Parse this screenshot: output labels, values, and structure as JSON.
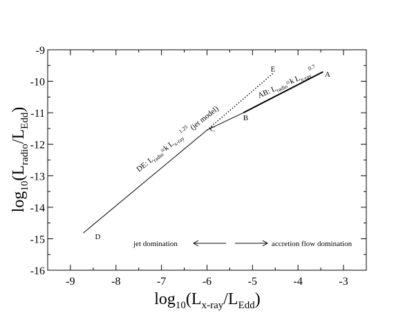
{
  "chart_data": {
    "type": "line",
    "xlim": [
      -9.5,
      -2.5
    ],
    "ylim": [
      -16,
      -9
    ],
    "x_ticks": [
      -9,
      -8,
      -7,
      -6,
      -5,
      -4,
      -3
    ],
    "y_ticks": [
      -16,
      -15,
      -14,
      -13,
      -12,
      -11,
      -10,
      -9
    ],
    "x_tick_labels": [
      "-9",
      "-8",
      "-7",
      "-6",
      "-5",
      "-4",
      "-3"
    ],
    "y_tick_labels": [
      "-16",
      "-15",
      "-14",
      "-13",
      "-12",
      "-11",
      "-10",
      "-9"
    ],
    "grid": false,
    "xlabel": {
      "base": "log",
      "sub1": "10",
      "open": "(L",
      "sub2": "x-ray",
      "mid": "/L",
      "sub3": "Edd",
      "close": ")"
    },
    "ylabel": {
      "base": "log",
      "sub1": "10",
      "open": "(L",
      "sub2": "radio",
      "mid": "/L",
      "sub3": "Edd",
      "close": ")"
    },
    "series": [
      {
        "style": "solid-thin",
        "points": [
          [
            -8.72,
            -14.82
          ],
          [
            -6.0,
            -11.55
          ]
        ]
      },
      {
        "style": "dotted",
        "points": [
          [
            -6.0,
            -11.55
          ],
          [
            -4.55,
            -9.75
          ]
        ]
      },
      {
        "style": "solid-thin",
        "points": [
          [
            -6.0,
            -11.55
          ],
          [
            -5.2,
            -11.0
          ]
        ]
      },
      {
        "style": "solid-thick",
        "points": [
          [
            -5.2,
            -11.0
          ],
          [
            -3.45,
            -9.7
          ]
        ]
      }
    ],
    "point_labels": [
      {
        "text": "A",
        "x": -3.35,
        "y": -9.77
      },
      {
        "text": "B",
        "x": -5.15,
        "y": -11.15
      },
      {
        "text": "C",
        "x": -5.88,
        "y": -11.5
      },
      {
        "text": "D",
        "x": -8.4,
        "y": -14.93
      },
      {
        "text": "E",
        "x": -4.55,
        "y": -9.6
      }
    ],
    "annotations": {
      "de_relation": {
        "prefix": "DE: L",
        "sub1": "radio",
        "mid": "=k L",
        "sub2": "x-ray",
        "sup": "1.25",
        "suffix": " (jet model)"
      },
      "ab_relation": {
        "prefix": "AB: L",
        "sub1": "radio",
        "mid": "=k L",
        "sub2": "x-ray",
        "sup": "0.7"
      },
      "jet_domination": "jet domination",
      "accretion_domination": "accretion flow domination"
    }
  }
}
